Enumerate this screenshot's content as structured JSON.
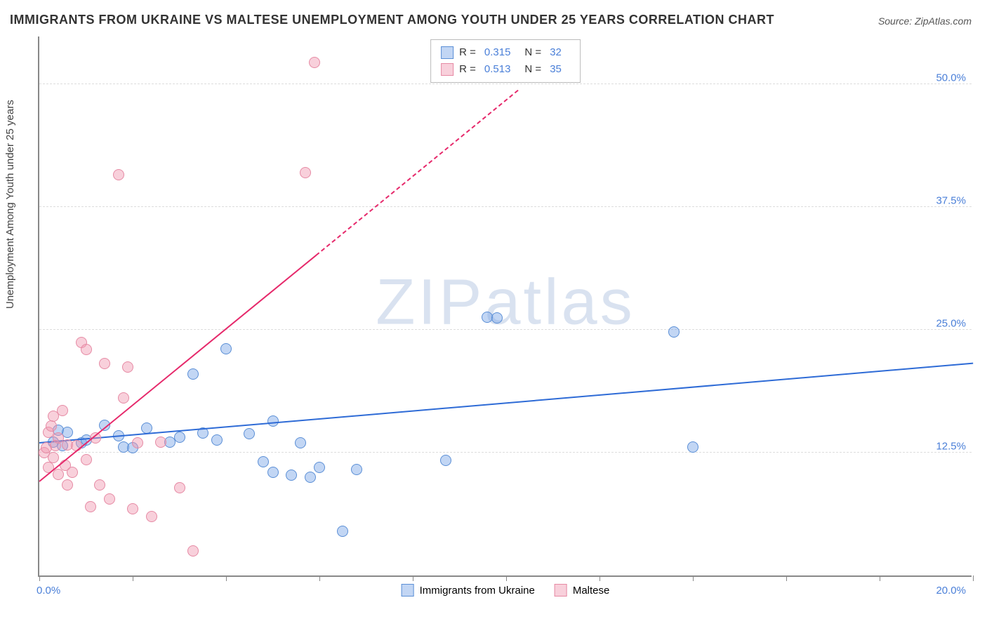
{
  "title": "IMMIGRANTS FROM UKRAINE VS MALTESE UNEMPLOYMENT AMONG YOUTH UNDER 25 YEARS CORRELATION CHART",
  "source": "Source: ZipAtlas.com",
  "ylabel": "Unemployment Among Youth under 25 years",
  "watermark": "ZIPatlas",
  "chart": {
    "type": "scatter",
    "xlim": [
      0,
      20
    ],
    "ylim": [
      0,
      55
    ],
    "x_ticks": [
      0,
      2,
      4,
      6,
      8,
      10,
      12,
      14,
      16,
      18,
      20
    ],
    "x_tick_labels": {
      "0": "0.0%",
      "20": "20.0%"
    },
    "y_gridlines": [
      12.5,
      25.0,
      37.5,
      50.0
    ],
    "y_tick_labels": [
      "12.5%",
      "25.0%",
      "37.5%",
      "50.0%"
    ],
    "background_color": "#ffffff",
    "grid_color": "#dddddd",
    "axis_color": "#888888",
    "tick_label_color": "#4a7fd8",
    "series": [
      {
        "name": "Immigrants from Ukraine",
        "color_fill": "rgba(120,165,230,0.45)",
        "color_stroke": "#5b8fd6",
        "trend_color": "#2e6bd6",
        "R": "0.315",
        "N": "32",
        "trend": {
          "x1": 0,
          "y1": 13.4,
          "x2": 20,
          "y2": 21.5
        },
        "points": [
          [
            0.3,
            13.6
          ],
          [
            0.4,
            14.8
          ],
          [
            0.5,
            13.2
          ],
          [
            0.6,
            14.6
          ],
          [
            0.9,
            13.5
          ],
          [
            1.0,
            13.8
          ],
          [
            1.4,
            15.3
          ],
          [
            1.7,
            14.2
          ],
          [
            1.8,
            13.1
          ],
          [
            2.0,
            13.0
          ],
          [
            2.3,
            15.0
          ],
          [
            2.8,
            13.6
          ],
          [
            3.0,
            14.1
          ],
          [
            3.3,
            20.5
          ],
          [
            3.5,
            14.5
          ],
          [
            3.8,
            13.8
          ],
          [
            4.0,
            23.1
          ],
          [
            4.5,
            14.4
          ],
          [
            4.8,
            11.6
          ],
          [
            5.0,
            15.7
          ],
          [
            5.0,
            10.5
          ],
          [
            5.4,
            10.2
          ],
          [
            5.6,
            13.5
          ],
          [
            5.8,
            10.0
          ],
          [
            6.0,
            11.0
          ],
          [
            6.5,
            4.5
          ],
          [
            6.8,
            10.8
          ],
          [
            8.7,
            11.7
          ],
          [
            9.6,
            26.3
          ],
          [
            9.8,
            26.2
          ],
          [
            13.6,
            24.8
          ],
          [
            14.0,
            13.1
          ]
        ]
      },
      {
        "name": "Maltese",
        "color_fill": "rgba(240,150,175,0.45)",
        "color_stroke": "#e68aa4",
        "trend_color": "#e6296b",
        "R": "0.513",
        "N": "35",
        "trend": {
          "x1": 0,
          "y1": 9.5,
          "x2": 7.6,
          "y2": 39.0
        },
        "trend_dashed_from": 0.78,
        "points": [
          [
            0.1,
            12.5
          ],
          [
            0.15,
            13.0
          ],
          [
            0.2,
            11.0
          ],
          [
            0.2,
            14.6
          ],
          [
            0.25,
            15.2
          ],
          [
            0.3,
            12.0
          ],
          [
            0.3,
            16.2
          ],
          [
            0.35,
            13.2
          ],
          [
            0.4,
            10.3
          ],
          [
            0.4,
            14.0
          ],
          [
            0.5,
            16.8
          ],
          [
            0.55,
            11.2
          ],
          [
            0.6,
            9.2
          ],
          [
            0.6,
            13.3
          ],
          [
            0.7,
            10.5
          ],
          [
            0.8,
            13.2
          ],
          [
            0.9,
            23.7
          ],
          [
            1.0,
            23.0
          ],
          [
            1.0,
            11.8
          ],
          [
            1.1,
            7.0
          ],
          [
            1.2,
            14.0
          ],
          [
            1.3,
            9.2
          ],
          [
            1.4,
            21.6
          ],
          [
            1.5,
            7.8
          ],
          [
            1.7,
            40.8
          ],
          [
            1.8,
            18.1
          ],
          [
            1.9,
            21.2
          ],
          [
            2.0,
            6.8
          ],
          [
            2.1,
            13.5
          ],
          [
            2.4,
            6.0
          ],
          [
            2.6,
            13.6
          ],
          [
            3.0,
            8.9
          ],
          [
            3.3,
            2.5
          ],
          [
            5.7,
            41.0
          ],
          [
            5.9,
            52.2
          ]
        ]
      }
    ]
  },
  "legend": {
    "stats_labels": {
      "R": "R =",
      "N": "N ="
    }
  }
}
